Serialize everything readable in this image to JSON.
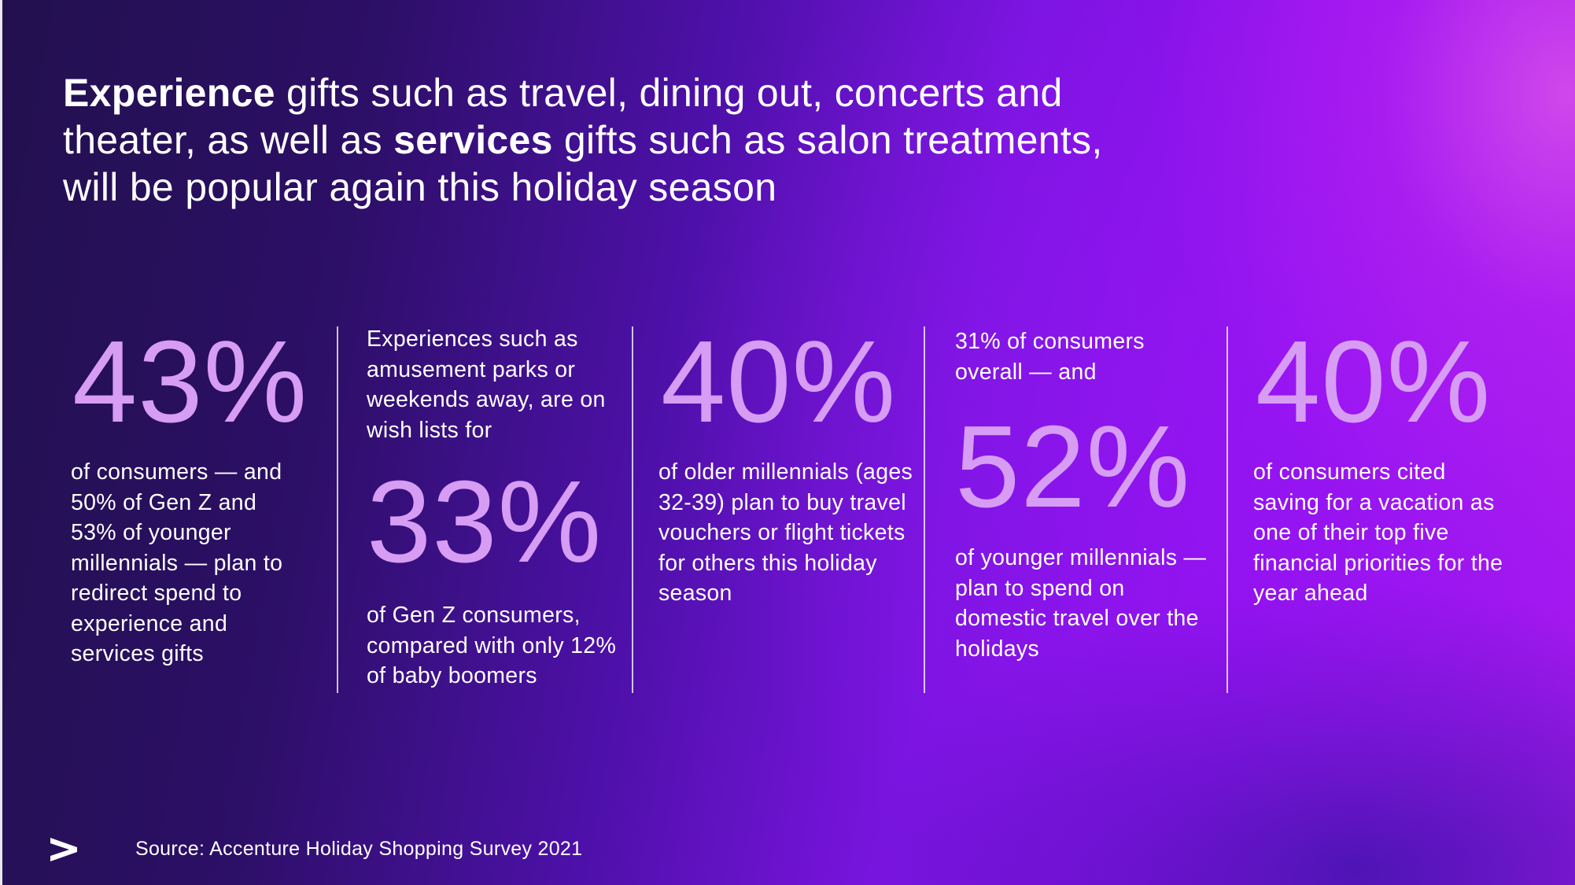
{
  "headline": {
    "bold1": "Experience",
    "text1": " gifts such as travel, dining out, concerts and theater, as well as ",
    "bold2": "services",
    "text2": " gifts such as salon treatments, will be popular again this holiday season"
  },
  "stats": [
    {
      "value": "43%",
      "description": "of consumers — and 50% of Gen Z and 53% of younger millennials — plan to redirect spend to experience and services gifts"
    },
    {
      "intro": "Experiences such as amusement parks or weekends away, are on wish lists for",
      "value": "33%",
      "description": "of Gen Z consumers, compared with only 12% of baby boomers"
    },
    {
      "value": "40%",
      "description": "of older millennials (ages 32-39) plan to buy travel vouchers or flight tickets for others this holiday season"
    },
    {
      "intro": "31% of consumers overall — and",
      "value": "52%",
      "description": "of younger millennials — plan to spend on domestic travel over the holidays"
    },
    {
      "value": "40%",
      "description": "of consumers cited saving for a vacation as one of their top five financial priorities for the year ahead"
    }
  ],
  "footer": {
    "logo_icon": "accenture-greater-than-icon",
    "source": "Source: Accenture Holiday Shopping Survey 2021"
  },
  "colors": {
    "stat_value": "#d79cf4",
    "text": "#ffffff"
  }
}
